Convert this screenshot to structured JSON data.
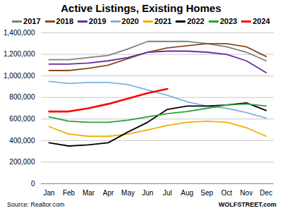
{
  "chart_data": {
    "type": "line",
    "title": "Active Listings, Existing Homes",
    "categories": [
      "Jan",
      "Feb",
      "Mar",
      "Apr",
      "May",
      "Jun",
      "Jul",
      "Aug",
      "Sep",
      "Oct",
      "Nov",
      "Dec"
    ],
    "series": [
      {
        "name": "2017",
        "color": "#808080",
        "values": [
          1150000,
          1150000,
          1170000,
          1190000,
          1250000,
          1320000,
          1320000,
          1320000,
          1300000,
          1270000,
          1220000,
          1140000
        ]
      },
      {
        "name": "2018",
        "color": "#8b4a1c",
        "values": [
          1050000,
          1050000,
          1070000,
          1100000,
          1160000,
          1220000,
          1260000,
          1280000,
          1300000,
          1300000,
          1270000,
          1180000
        ]
      },
      {
        "name": "2019",
        "color": "#6a2c9e",
        "values": [
          1110000,
          1110000,
          1120000,
          1140000,
          1170000,
          1220000,
          1230000,
          1230000,
          1220000,
          1200000,
          1140000,
          1030000
        ]
      },
      {
        "name": "2020",
        "color": "#7fb3e0",
        "values": [
          950000,
          930000,
          940000,
          940000,
          920000,
          870000,
          820000,
          760000,
          720000,
          700000,
          660000,
          610000
        ]
      },
      {
        "name": "2021",
        "color": "#f0b000",
        "values": [
          530000,
          460000,
          440000,
          440000,
          460000,
          500000,
          540000,
          570000,
          580000,
          570000,
          520000,
          440000
        ]
      },
      {
        "name": "2022",
        "color": "#000000",
        "values": [
          380000,
          350000,
          360000,
          380000,
          480000,
          570000,
          690000,
          720000,
          720000,
          730000,
          750000,
          680000
        ]
      },
      {
        "name": "2023",
        "color": "#2e9e3a",
        "values": [
          620000,
          580000,
          570000,
          570000,
          590000,
          620000,
          650000,
          670000,
          700000,
          730000,
          740000,
          720000
        ]
      },
      {
        "name": "2024",
        "color": "#ff0000",
        "values": [
          670000,
          670000,
          700000,
          740000,
          790000,
          840000,
          880000,
          null,
          null,
          null,
          null,
          null
        ]
      }
    ],
    "ylim": [
      0,
      1400000
    ],
    "yticks": [
      0,
      {
        "value": 200000,
        "label": "200,000"
      },
      {
        "value": 400000,
        "label": "400,000"
      },
      {
        "value": 600000,
        "label": "600,000"
      },
      {
        "value": 800000,
        "label": "800,000"
      },
      {
        "value": 1000000,
        "label": "1,000,000"
      },
      {
        "value": 1200000,
        "label": "1,200,000"
      },
      {
        "value": 1400000,
        "label": "1,400,000"
      }
    ],
    "grid": true,
    "source": "Source: Realtor.com",
    "credit": "WOLFSTREET.com"
  }
}
